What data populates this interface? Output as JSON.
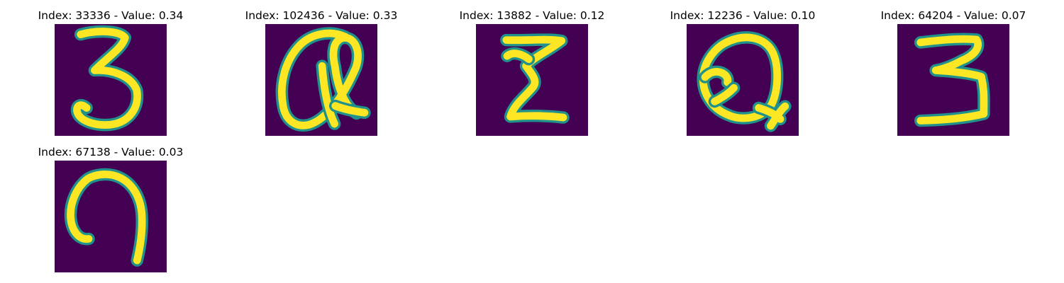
{
  "colors": {
    "background": "#440154",
    "stroke_core": "#fde725",
    "stroke_edge": "#21918c",
    "title_text": "#000000"
  },
  "panels": [
    {
      "title": "Index: 33336 - Value: 0.34",
      "glyph": "digit-three"
    },
    {
      "title": "Index: 102436 - Value: 0.33",
      "glyph": "letter-q-looped"
    },
    {
      "title": "Index: 13882 - Value: 0.12",
      "glyph": "sigma"
    },
    {
      "title": "Index: 12236 - Value: 0.10",
      "glyph": "letter-q-script"
    },
    {
      "title": "Index: 64204 - Value: 0.07",
      "glyph": "digit-three-blocky"
    },
    {
      "title": "Index: 67138 - Value: 0.03",
      "glyph": "arch-curve"
    }
  ]
}
